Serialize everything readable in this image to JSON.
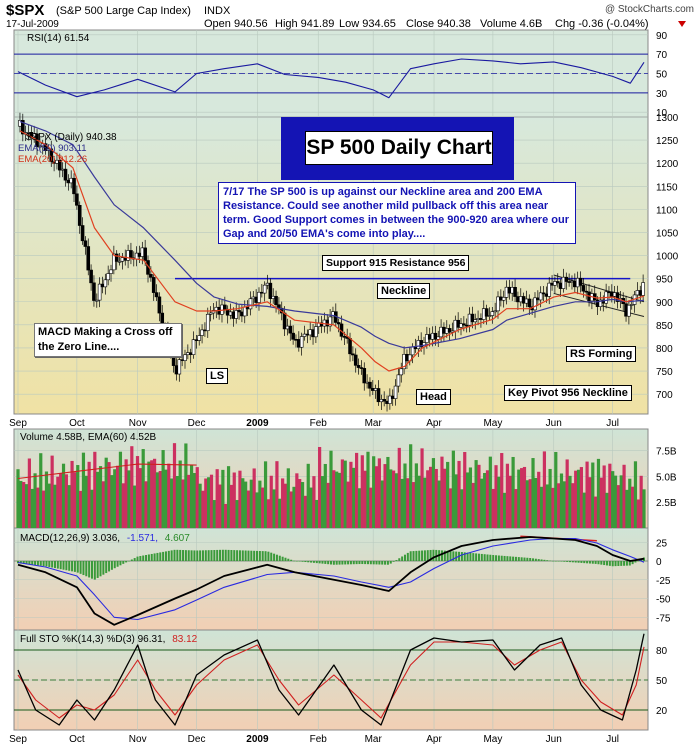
{
  "header": {
    "symbol": "$SPX",
    "name": "(S&P 500 Large Cap Index)",
    "exchange": "INDX",
    "brand": "@ StockCharts.com",
    "date": "17-Jul-2009",
    "open": "Open 940.56",
    "high": "High 941.89",
    "low": "Low 934.65",
    "close": "Close 940.38",
    "volume": "Volume 4.6B",
    "chg": "Chg -0.36 (-0.04%)"
  },
  "annotations": {
    "title": "SP 500 Daily Chart",
    "note": "7/17  The SP 500 is up against our Neckline area and 200 EMA Resistance.  Could see another mild pullback off this area near term.  Good Support comes in between the 900-920 area where our Gap and 20/50 EMA's come into play....",
    "support": "Support 915 Resistance 956",
    "neckline": "Neckline",
    "macd_cross": "MACD Making a Cross off the Zero Line....",
    "ls": "LS",
    "head": "Head",
    "rs": "RS Forming",
    "pivot": "Key Pivot 956 Neckline"
  },
  "chart_data": [
    {
      "type": "line",
      "panel": "rsi",
      "legend": [
        "RSI(14) 61.54"
      ],
      "y_ticks": [
        90,
        70,
        50,
        30,
        10
      ],
      "ylim": [
        5,
        95
      ],
      "reference_lines": [
        70,
        30
      ],
      "last_value": 61.54,
      "x": [
        "Sep 1",
        "Sep 15",
        "Oct 1",
        "Oct 15",
        "Nov 1",
        "Nov 20",
        "Dec 1",
        "Dec 15",
        "Jan 1",
        "Jan 15",
        "Feb 1",
        "Feb 15",
        "Mar 1",
        "Mar 9",
        "Mar 20",
        "Apr 1",
        "Apr 15",
        "May 1",
        "May 15",
        "Jun 1",
        "Jun 15",
        "Jul 1",
        "Jul 10",
        "Jul 17"
      ],
      "values": [
        52,
        38,
        26,
        33,
        44,
        31,
        50,
        55,
        60,
        49,
        46,
        41,
        33,
        25,
        55,
        60,
        65,
        63,
        60,
        62,
        56,
        47,
        40,
        61.54
      ]
    },
    {
      "type": "line",
      "panel": "price",
      "legend": [
        "$SPX (Daily) 940.38",
        "EMA(50) 903.11",
        "EMA(20) 912.26"
      ],
      "colors": {
        "price": "#000000",
        "ema50": "#3a3a9a",
        "ema20": "#e04020",
        "neckline": "#1414c8"
      },
      "y_ticks": [
        1300,
        1250,
        1200,
        1150,
        1100,
        1050,
        1000,
        950,
        900,
        850,
        800,
        750,
        700
      ],
      "ylim": [
        657,
        1300
      ],
      "x_ticks": [
        "Sep",
        "Oct",
        "Nov",
        "Dec",
        "2009",
        "Feb",
        "Mar",
        "Apr",
        "May",
        "Jun",
        "Jul"
      ],
      "neckline": 950,
      "x": [
        "Sep 2",
        "Sep 15",
        "Sep 29",
        "Oct 10",
        "Oct 20",
        "Nov 4",
        "Nov 20",
        "Dec 1",
        "Dec 10",
        "Dec 22",
        "Jan 6",
        "Jan 20",
        "Feb 9",
        "Feb 23",
        "Mar 2",
        "Mar 9",
        "Mar 17",
        "Mar 26",
        "Apr 14",
        "May 1",
        "May 8",
        "May 20",
        "Jun 1",
        "Jun 12",
        "Jun 23",
        "Jul 1",
        "Jul 8",
        "Jul 17"
      ],
      "series": [
        {
          "name": "$SPX (Daily)",
          "values": [
            1280,
            1230,
            1150,
            900,
            990,
            1005,
            752,
            816,
            888,
            870,
            935,
            810,
            870,
            743,
            700,
            677,
            778,
            815,
            850,
            878,
            928,
            890,
            940,
            945,
            895,
            923,
            880,
            940.38
          ]
        },
        {
          "name": "EMA(50)",
          "values": [
            1290,
            1270,
            1240,
            1170,
            1110,
            1060,
            990,
            940,
            910,
            895,
            890,
            880,
            870,
            845,
            825,
            810,
            800,
            805,
            820,
            840,
            860,
            875,
            890,
            900,
            900,
            905,
            900,
            903.11
          ]
        },
        {
          "name": "EMA(20)",
          "values": [
            1270,
            1240,
            1190,
            1060,
            1000,
            990,
            900,
            880,
            880,
            885,
            900,
            860,
            850,
            800,
            770,
            750,
            760,
            800,
            840,
            862,
            885,
            885,
            910,
            920,
            908,
            910,
            900,
            912.26
          ]
        }
      ]
    },
    {
      "type": "bar",
      "panel": "volume",
      "legend": [
        "Volume 4.58B, EMA(60) 4.52B"
      ],
      "y_ticks": [
        "7.5B",
        "5.0B",
        "2.5B"
      ],
      "y_tick_values": [
        7.5,
        5.0,
        2.5
      ],
      "ylim": [
        0,
        9.6
      ],
      "last_value": 4.58,
      "ema60_last": 4.52,
      "ema60": [
        4.8,
        5.5,
        6.2,
        6.1,
        5.6,
        5.8,
        6.0,
        5.9,
        5.5,
        5.3,
        5.2,
        4.8,
        4.5,
        4.52
      ],
      "ema60_x": [
        "Sep",
        "Oct",
        "Nov",
        "Dec",
        "2009",
        "Feb",
        "Mar",
        "Apr",
        "May",
        "Jun",
        "Jul 1",
        "Jul 8",
        "Jul 13",
        "Jul 17"
      ]
    },
    {
      "type": "line",
      "panel": "macd",
      "legend": [
        "MACD(12,26,9) 3.036, -1.571, 4.607"
      ],
      "legend_parts": [
        "MACD(12,26,9) 3.036,",
        "-1.571,",
        "4.607"
      ],
      "y_ticks": [
        25,
        0,
        -25,
        -50,
        -75
      ],
      "ylim": [
        -92,
        44
      ],
      "x": [
        "Sep 1",
        "Sep 15",
        "Oct 1",
        "Oct 10",
        "Oct 20",
        "Nov 1",
        "Nov 20",
        "Dec 1",
        "Dec 15",
        "Jan 6",
        "Jan 20",
        "Feb 9",
        "Feb 23",
        "Mar 9",
        "Mar 20",
        "Apr 1",
        "Apr 15",
        "May 1",
        "May 20",
        "Jun 1",
        "Jun 12",
        "Jun 23",
        "Jul 1",
        "Jul 10",
        "Jul 17"
      ],
      "series": [
        {
          "name": "MACD",
          "values": [
            -5,
            -15,
            -35,
            -70,
            -85,
            -72,
            -50,
            -38,
            -20,
            -5,
            -15,
            -25,
            -32,
            -40,
            -15,
            5,
            20,
            28,
            32,
            30,
            28,
            20,
            8,
            0,
            3.036
          ]
        },
        {
          "name": "Signal",
          "values": [
            -2,
            -8,
            -20,
            -45,
            -75,
            -78,
            -65,
            -52,
            -35,
            -18,
            -15,
            -20,
            -28,
            -35,
            -28,
            -10,
            8,
            20,
            28,
            30,
            30,
            24,
            15,
            6,
            -1.571
          ]
        },
        {
          "name": "Histogram",
          "values": [
            -3,
            -7,
            -15,
            -25,
            -10,
            6,
            15,
            14,
            15,
            13,
            0,
            -5,
            -4,
            -5,
            13,
            15,
            12,
            8,
            4,
            0,
            -2,
            -4,
            -7,
            -6,
            4.607
          ]
        }
      ]
    },
    {
      "type": "line",
      "panel": "stochastic",
      "legend": [
        "Full STO %K(14,3) %D(3) 96.31, 83.12"
      ],
      "legend_parts": [
        "Full STO %K(14,3) %D(3) 96.31,",
        "83.12"
      ],
      "y_ticks": [
        80,
        50,
        20
      ],
      "ylim": [
        0,
        100
      ],
      "reference_lines": [
        80,
        50,
        20
      ],
      "x": [
        "Sep 1",
        "Sep 10",
        "Sep 22",
        "Oct 1",
        "Oct 10",
        "Oct 20",
        "Nov 1",
        "Nov 10",
        "Nov 20",
        "Dec 1",
        "Dec 15",
        "Jan 1",
        "Jan 12",
        "Jan 22",
        "Feb 9",
        "Feb 23",
        "Mar 5",
        "Mar 20",
        "Apr 1",
        "Apr 15",
        "May 1",
        "May 12",
        "May 25",
        "Jun 5",
        "Jun 15",
        "Jun 25",
        "Jul 6",
        "Jul 13",
        "Jul 17"
      ],
      "series": [
        {
          "name": "%K",
          "values": [
            60,
            20,
            5,
            30,
            10,
            40,
            85,
            30,
            5,
            55,
            75,
            90,
            40,
            15,
            65,
            20,
            5,
            80,
            92,
            88,
            90,
            60,
            85,
            92,
            45,
            20,
            10,
            60,
            96.31
          ]
        },
        {
          "name": "%D",
          "values": [
            55,
            30,
            12,
            25,
            20,
            35,
            70,
            40,
            15,
            45,
            70,
            85,
            50,
            25,
            55,
            30,
            12,
            65,
            88,
            88,
            85,
            65,
            80,
            88,
            50,
            28,
            15,
            45,
            83.12
          ]
        }
      ]
    }
  ]
}
